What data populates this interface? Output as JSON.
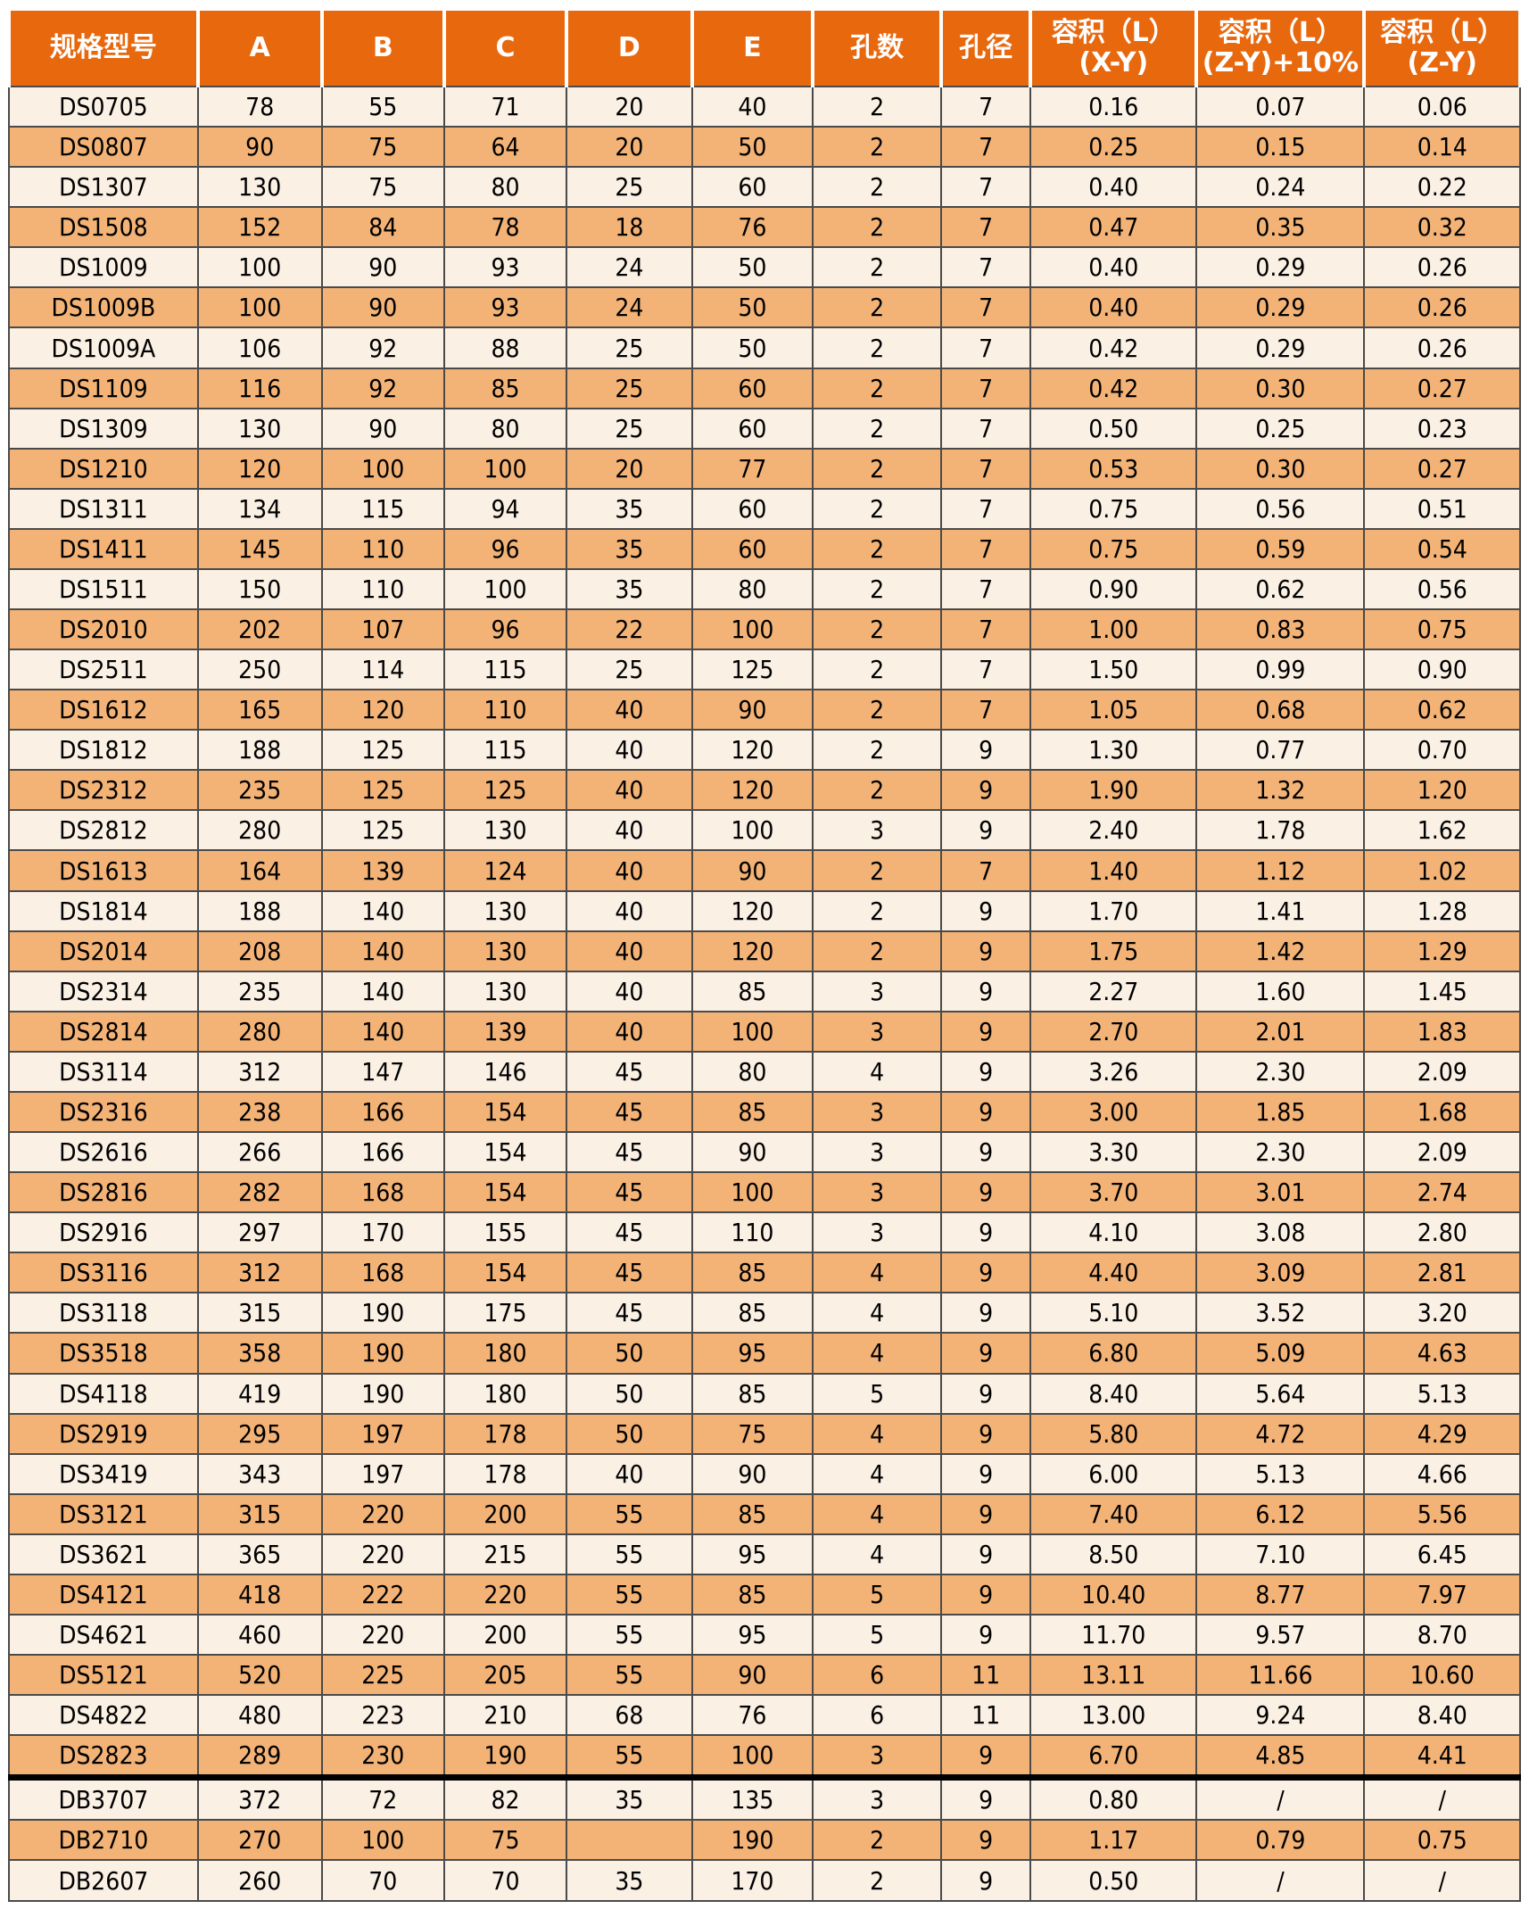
{
  "colors": {
    "header_bg": "#E8680E",
    "header_text": "#FFFFFF",
    "row_cream": "#FAF0E4",
    "row_orange": "#F3B377",
    "grid_line": "#4A4A4A",
    "section_divider": "#000000",
    "body_text": "#000000"
  },
  "table": {
    "headers": [
      {
        "label": "规格型号",
        "sub": ""
      },
      {
        "label": "A",
        "sub": ""
      },
      {
        "label": "B",
        "sub": ""
      },
      {
        "label": "C",
        "sub": ""
      },
      {
        "label": "D",
        "sub": ""
      },
      {
        "label": "E",
        "sub": ""
      },
      {
        "label": "孔数",
        "sub": ""
      },
      {
        "label": "孔径",
        "sub": ""
      },
      {
        "label": "容积（L）",
        "sub": "(X-Y)"
      },
      {
        "label": "容积（L）",
        "sub": "(Z-Y)+10%"
      },
      {
        "label": "容积（L）",
        "sub": "(Z-Y)"
      }
    ],
    "col_widths_pct": [
      12.5,
      8.2,
      8.1,
      8.1,
      8.3,
      8.0,
      8.5,
      5.9,
      11.0,
      11.1,
      10.3
    ],
    "thick_divider_before_row_index": 42,
    "rows": [
      [
        "DS0705",
        "78",
        "55",
        "71",
        "20",
        "40",
        "2",
        "7",
        "0.16",
        "0.07",
        "0.06"
      ],
      [
        "DS0807",
        "90",
        "75",
        "64",
        "20",
        "50",
        "2",
        "7",
        "0.25",
        "0.15",
        "0.14"
      ],
      [
        "DS1307",
        "130",
        "75",
        "80",
        "25",
        "60",
        "2",
        "7",
        "0.40",
        "0.24",
        "0.22"
      ],
      [
        "DS1508",
        "152",
        "84",
        "78",
        "18",
        "76",
        "2",
        "7",
        "0.47",
        "0.35",
        "0.32"
      ],
      [
        "DS1009",
        "100",
        "90",
        "93",
        "24",
        "50",
        "2",
        "7",
        "0.40",
        "0.29",
        "0.26"
      ],
      [
        "DS1009B",
        "100",
        "90",
        "93",
        "24",
        "50",
        "2",
        "7",
        "0.40",
        "0.29",
        "0.26"
      ],
      [
        "DS1009A",
        "106",
        "92",
        "88",
        "25",
        "50",
        "2",
        "7",
        "0.42",
        "0.29",
        "0.26"
      ],
      [
        "DS1109",
        "116",
        "92",
        "85",
        "25",
        "60",
        "2",
        "7",
        "0.42",
        "0.30",
        "0.27"
      ],
      [
        "DS1309",
        "130",
        "90",
        "80",
        "25",
        "60",
        "2",
        "7",
        "0.50",
        "0.25",
        "0.23"
      ],
      [
        "DS1210",
        "120",
        "100",
        "100",
        "20",
        "77",
        "2",
        "7",
        "0.53",
        "0.30",
        "0.27"
      ],
      [
        "DS1311",
        "134",
        "115",
        "94",
        "35",
        "60",
        "2",
        "7",
        "0.75",
        "0.56",
        "0.51"
      ],
      [
        "DS1411",
        "145",
        "110",
        "96",
        "35",
        "60",
        "2",
        "7",
        "0.75",
        "0.59",
        "0.54"
      ],
      [
        "DS1511",
        "150",
        "110",
        "100",
        "35",
        "80",
        "2",
        "7",
        "0.90",
        "0.62",
        "0.56"
      ],
      [
        "DS2010",
        "202",
        "107",
        "96",
        "22",
        "100",
        "2",
        "7",
        "1.00",
        "0.83",
        "0.75"
      ],
      [
        "DS2511",
        "250",
        "114",
        "115",
        "25",
        "125",
        "2",
        "7",
        "1.50",
        "0.99",
        "0.90"
      ],
      [
        "DS1612",
        "165",
        "120",
        "110",
        "40",
        "90",
        "2",
        "7",
        "1.05",
        "0.68",
        "0.62"
      ],
      [
        "DS1812",
        "188",
        "125",
        "115",
        "40",
        "120",
        "2",
        "9",
        "1.30",
        "0.77",
        "0.70"
      ],
      [
        "DS2312",
        "235",
        "125",
        "125",
        "40",
        "120",
        "2",
        "9",
        "1.90",
        "1.32",
        "1.20"
      ],
      [
        "DS2812",
        "280",
        "125",
        "130",
        "40",
        "100",
        "3",
        "9",
        "2.40",
        "1.78",
        "1.62"
      ],
      [
        "DS1613",
        "164",
        "139",
        "124",
        "40",
        "90",
        "2",
        "7",
        "1.40",
        "1.12",
        "1.02"
      ],
      [
        "DS1814",
        "188",
        "140",
        "130",
        "40",
        "120",
        "2",
        "9",
        "1.70",
        "1.41",
        "1.28"
      ],
      [
        "DS2014",
        "208",
        "140",
        "130",
        "40",
        "120",
        "2",
        "9",
        "1.75",
        "1.42",
        "1.29"
      ],
      [
        "DS2314",
        "235",
        "140",
        "130",
        "40",
        "85",
        "3",
        "9",
        "2.27",
        "1.60",
        "1.45"
      ],
      [
        "DS2814",
        "280",
        "140",
        "139",
        "40",
        "100",
        "3",
        "9",
        "2.70",
        "2.01",
        "1.83"
      ],
      [
        "DS3114",
        "312",
        "147",
        "146",
        "45",
        "80",
        "4",
        "9",
        "3.26",
        "2.30",
        "2.09"
      ],
      [
        "DS2316",
        "238",
        "166",
        "154",
        "45",
        "85",
        "3",
        "9",
        "3.00",
        "1.85",
        "1.68"
      ],
      [
        "DS2616",
        "266",
        "166",
        "154",
        "45",
        "90",
        "3",
        "9",
        "3.30",
        "2.30",
        "2.09"
      ],
      [
        "DS2816",
        "282",
        "168",
        "154",
        "45",
        "100",
        "3",
        "9",
        "3.70",
        "3.01",
        "2.74"
      ],
      [
        "DS2916",
        "297",
        "170",
        "155",
        "45",
        "110",
        "3",
        "9",
        "4.10",
        "3.08",
        "2.80"
      ],
      [
        "DS3116",
        "312",
        "168",
        "154",
        "45",
        "85",
        "4",
        "9",
        "4.40",
        "3.09",
        "2.81"
      ],
      [
        "DS3118",
        "315",
        "190",
        "175",
        "45",
        "85",
        "4",
        "9",
        "5.10",
        "3.52",
        "3.20"
      ],
      [
        "DS3518",
        "358",
        "190",
        "180",
        "50",
        "95",
        "4",
        "9",
        "6.80",
        "5.09",
        "4.63"
      ],
      [
        "DS4118",
        "419",
        "190",
        "180",
        "50",
        "85",
        "5",
        "9",
        "8.40",
        "5.64",
        "5.13"
      ],
      [
        "DS2919",
        "295",
        "197",
        "178",
        "50",
        "75",
        "4",
        "9",
        "5.80",
        "4.72",
        "4.29"
      ],
      [
        "DS3419",
        "343",
        "197",
        "178",
        "40",
        "90",
        "4",
        "9",
        "6.00",
        "5.13",
        "4.66"
      ],
      [
        "DS3121",
        "315",
        "220",
        "200",
        "55",
        "85",
        "4",
        "9",
        "7.40",
        "6.12",
        "5.56"
      ],
      [
        "DS3621",
        "365",
        "220",
        "215",
        "55",
        "95",
        "4",
        "9",
        "8.50",
        "7.10",
        "6.45"
      ],
      [
        "DS4121",
        "418",
        "222",
        "220",
        "55",
        "85",
        "5",
        "9",
        "10.40",
        "8.77",
        "7.97"
      ],
      [
        "DS4621",
        "460",
        "220",
        "200",
        "55",
        "95",
        "5",
        "9",
        "11.70",
        "9.57",
        "8.70"
      ],
      [
        "DS5121",
        "520",
        "225",
        "205",
        "55",
        "90",
        "6",
        "11",
        "13.11",
        "11.66",
        "10.60"
      ],
      [
        "DS4822",
        "480",
        "223",
        "210",
        "68",
        "76",
        "6",
        "11",
        "13.00",
        "9.24",
        "8.40"
      ],
      [
        "DS2823",
        "289",
        "230",
        "190",
        "55",
        "100",
        "3",
        "9",
        "6.70",
        "4.85",
        "4.41"
      ],
      [
        "DB3707",
        "372",
        "72",
        "82",
        "35",
        "135",
        "3",
        "9",
        "0.80",
        "/",
        "/"
      ],
      [
        "DB2710",
        "270",
        "100",
        "75",
        "",
        "190",
        "2",
        "9",
        "1.17",
        "0.79",
        "0.75"
      ],
      [
        "DB2607",
        "260",
        "70",
        "70",
        "35",
        "170",
        "2",
        "9",
        "0.50",
        "/",
        "/"
      ]
    ]
  }
}
